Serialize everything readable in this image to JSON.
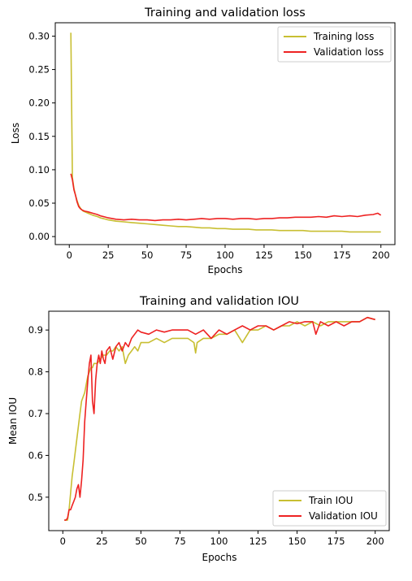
{
  "colors": {
    "training": "#c8bf32",
    "validation": "#ee2222"
  },
  "chart_data": [
    {
      "type": "line",
      "title": "Training and validation loss",
      "xlabel": "Epochs",
      "ylabel": "Loss",
      "xlim": [
        -9,
        209
      ],
      "ylim": [
        -0.012,
        0.32
      ],
      "xticks": [
        0,
        25,
        50,
        75,
        100,
        125,
        150,
        175,
        200
      ],
      "yticks": [
        0.0,
        0.05,
        0.1,
        0.15,
        0.2,
        0.25,
        0.3
      ],
      "ytick_labels": [
        "0.00",
        "0.05",
        "0.10",
        "0.15",
        "0.20",
        "0.25",
        "0.30"
      ],
      "grid": false,
      "legend_position": "top-right",
      "series": [
        {
          "name": "Training loss",
          "color": "#c8bf32",
          "x": [
            1,
            2,
            3,
            4,
            5,
            6,
            7,
            8,
            9,
            10,
            12,
            15,
            18,
            20,
            25,
            30,
            35,
            40,
            45,
            50,
            55,
            60,
            65,
            70,
            75,
            80,
            85,
            90,
            95,
            100,
            105,
            110,
            115,
            120,
            125,
            130,
            135,
            140,
            145,
            150,
            155,
            160,
            165,
            170,
            175,
            180,
            185,
            190,
            195,
            200
          ],
          "y": [
            0.305,
            0.088,
            0.072,
            0.062,
            0.054,
            0.047,
            0.043,
            0.04,
            0.038,
            0.037,
            0.035,
            0.032,
            0.03,
            0.028,
            0.025,
            0.023,
            0.022,
            0.021,
            0.02,
            0.019,
            0.018,
            0.017,
            0.016,
            0.015,
            0.015,
            0.014,
            0.013,
            0.013,
            0.012,
            0.012,
            0.011,
            0.011,
            0.011,
            0.01,
            0.01,
            0.01,
            0.009,
            0.009,
            0.009,
            0.009,
            0.008,
            0.008,
            0.008,
            0.008,
            0.008,
            0.007,
            0.007,
            0.007,
            0.007,
            0.007
          ]
        },
        {
          "name": "Validation loss",
          "color": "#ee2222",
          "x": [
            1,
            2,
            3,
            4,
            5,
            6,
            7,
            8,
            9,
            10,
            12,
            15,
            18,
            20,
            25,
            30,
            35,
            40,
            45,
            50,
            55,
            60,
            65,
            70,
            75,
            80,
            85,
            90,
            95,
            100,
            105,
            110,
            115,
            120,
            125,
            130,
            135,
            140,
            145,
            150,
            155,
            160,
            165,
            170,
            175,
            180,
            185,
            190,
            195,
            198,
            200
          ],
          "y": [
            0.094,
            0.085,
            0.07,
            0.062,
            0.052,
            0.045,
            0.042,
            0.04,
            0.039,
            0.038,
            0.037,
            0.035,
            0.033,
            0.031,
            0.028,
            0.026,
            0.025,
            0.026,
            0.025,
            0.025,
            0.024,
            0.025,
            0.025,
            0.026,
            0.025,
            0.026,
            0.027,
            0.026,
            0.027,
            0.027,
            0.026,
            0.027,
            0.027,
            0.026,
            0.027,
            0.027,
            0.028,
            0.028,
            0.029,
            0.029,
            0.029,
            0.03,
            0.029,
            0.031,
            0.03,
            0.031,
            0.03,
            0.032,
            0.033,
            0.035,
            0.032
          ]
        }
      ]
    },
    {
      "type": "line",
      "title": "Training and validation IOU",
      "xlabel": "Epochs",
      "ylabel": "Mean IOU",
      "xlim": [
        -9,
        209
      ],
      "ylim": [
        0.42,
        0.945
      ],
      "xticks": [
        0,
        25,
        50,
        75,
        100,
        125,
        150,
        175,
        200
      ],
      "yticks": [
        0.5,
        0.6,
        0.7,
        0.8,
        0.9
      ],
      "ytick_labels": [
        "0.5",
        "0.6",
        "0.7",
        "0.8",
        "0.9"
      ],
      "grid": false,
      "legend_position": "bottom-right",
      "series": [
        {
          "name": "Train IOU",
          "color": "#c8bf32",
          "x": [
            1,
            2,
            3,
            4,
            5,
            6,
            7,
            8,
            9,
            10,
            11,
            12,
            13,
            14,
            15,
            16,
            17,
            18,
            19,
            20,
            22,
            24,
            26,
            28,
            30,
            32,
            34,
            36,
            38,
            40,
            42,
            44,
            46,
            48,
            50,
            55,
            60,
            65,
            70,
            75,
            80,
            84,
            85,
            86,
            90,
            95,
            100,
            105,
            110,
            115,
            120,
            125,
            130,
            135,
            140,
            145,
            150,
            155,
            160,
            165,
            170,
            175,
            180,
            185,
            190,
            195,
            200
          ],
          "y": [
            0.445,
            0.445,
            0.445,
            0.47,
            0.51,
            0.55,
            0.58,
            0.61,
            0.64,
            0.67,
            0.7,
            0.73,
            0.74,
            0.75,
            0.77,
            0.79,
            0.8,
            0.81,
            0.81,
            0.82,
            0.82,
            0.83,
            0.84,
            0.84,
            0.85,
            0.85,
            0.86,
            0.85,
            0.86,
            0.82,
            0.84,
            0.85,
            0.86,
            0.85,
            0.87,
            0.87,
            0.88,
            0.87,
            0.88,
            0.88,
            0.88,
            0.87,
            0.845,
            0.87,
            0.88,
            0.88,
            0.89,
            0.89,
            0.9,
            0.87,
            0.9,
            0.9,
            0.91,
            0.9,
            0.91,
            0.91,
            0.92,
            0.91,
            0.92,
            0.91,
            0.92,
            0.92,
            0.92,
            0.92,
            0.92,
            0.93,
            0.925
          ]
        },
        {
          "name": "Validation IOU",
          "color": "#ee2222",
          "x": [
            1,
            2,
            3,
            4,
            5,
            6,
            7,
            8,
            9,
            10,
            11,
            12,
            13,
            14,
            15,
            16,
            17,
            18,
            19,
            20,
            21,
            22,
            23,
            24,
            25,
            26,
            27,
            28,
            30,
            32,
            34,
            36,
            38,
            40,
            42,
            44,
            46,
            48,
            50,
            55,
            60,
            65,
            70,
            75,
            80,
            85,
            90,
            95,
            100,
            105,
            110,
            115,
            120,
            125,
            130,
            135,
            140,
            145,
            150,
            155,
            160,
            162,
            165,
            170,
            175,
            180,
            185,
            190,
            195,
            200
          ],
          "y": [
            0.445,
            0.445,
            0.45,
            0.47,
            0.47,
            0.48,
            0.49,
            0.5,
            0.52,
            0.53,
            0.5,
            0.54,
            0.59,
            0.68,
            0.73,
            0.78,
            0.82,
            0.84,
            0.73,
            0.7,
            0.78,
            0.82,
            0.84,
            0.82,
            0.85,
            0.83,
            0.82,
            0.85,
            0.86,
            0.83,
            0.86,
            0.87,
            0.85,
            0.87,
            0.86,
            0.88,
            0.89,
            0.9,
            0.895,
            0.89,
            0.9,
            0.895,
            0.9,
            0.9,
            0.9,
            0.89,
            0.9,
            0.88,
            0.9,
            0.89,
            0.9,
            0.91,
            0.9,
            0.91,
            0.91,
            0.9,
            0.91,
            0.92,
            0.915,
            0.92,
            0.92,
            0.89,
            0.92,
            0.91,
            0.92,
            0.91,
            0.92,
            0.92,
            0.93,
            0.925
          ]
        }
      ]
    }
  ]
}
